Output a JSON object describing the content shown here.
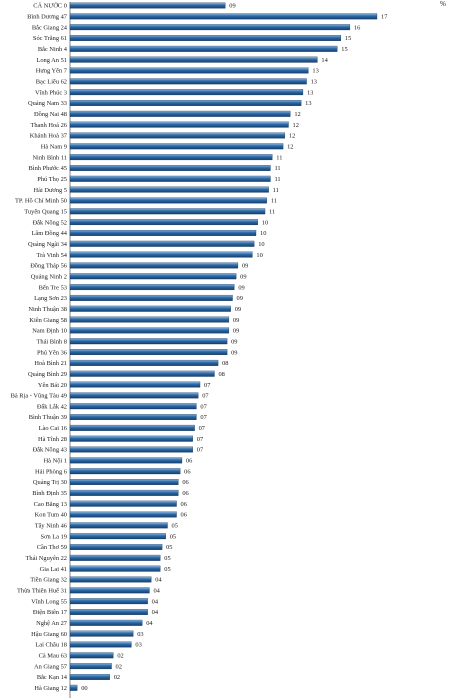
{
  "chart_data": {
    "type": "bar",
    "orientation": "horizontal",
    "unit_label": "%",
    "bar_color": "#1f5a96",
    "bar_highlight": "#8fb6dd",
    "xlim": [
      0,
      18
    ],
    "grid": false,
    "categories": [
      "CẢ NƯỚC 0",
      "Bình Dương 47",
      "Bắc Giang 24",
      "Sóc Trăng 61",
      "Bắc Ninh 4",
      "Long An 51",
      "Hưng Yên 7",
      "Bạc Liêu 62",
      "Vĩnh Phúc 3",
      "Quảng Nam 33",
      "Đồng Nai 48",
      "Thanh Hoá 26",
      "Khánh Hoà 37",
      "Hà Nam 9",
      "Ninh Bình 11",
      "Bình Phước 45",
      "Phú Thọ 25",
      "Hải Dương 5",
      "TP. Hồ Chí Minh 50",
      "Tuyên Quang 15",
      "Đắk Nông 52",
      "Lâm Đồng 44",
      "Quảng Ngãi 34",
      "Trà Vinh 54",
      "Đồng Tháp 56",
      "Quảng Ninh 2",
      "Bến Tre 53",
      "Lạng Sơn 23",
      "Ninh Thuận 38",
      "Kiên Giang 58",
      "Nam Định 10",
      "Thái Bình 8",
      "Phú Yên 36",
      "Hoà Bình 21",
      "Quảng Bình 29",
      "Yên Bái 20",
      "Bà Rịa - Vũng Tàu 49",
      "Đắk Lắk 42",
      "Bình Thuận 39",
      "Lào Cai 16",
      "Hà Tĩnh 28",
      "Đắk Nông 43",
      "Hà Nội 1",
      "Hải Phòng 6",
      "Quảng Trị 30",
      "Bình Định 35",
      "Cao Bằng 13",
      "Kon Tum 40",
      "Tây Ninh 46",
      "Sơn La 19",
      "Cần Thơ 59",
      "Thái Nguyên 22",
      "Gia Lai 41",
      "Tiền Giang 32",
      "Thừa Thiên Huế 31",
      "Vĩnh Long 55",
      "Điện Biên 17",
      "Nghệ An 27",
      "Hậu Giang 60",
      "Lai Châu 18",
      "Cà Mau 63",
      "An Giang 57",
      "Bắc Kạn 14",
      "Hà Giang 12"
    ],
    "value_labels": [
      "09",
      "17",
      "16",
      "15",
      "15",
      "14",
      "13",
      "13",
      "13",
      "13",
      "12",
      "12",
      "12",
      "12",
      "11",
      "11",
      "11",
      "11",
      "11",
      "11",
      "10",
      "10",
      "10",
      "10",
      "09",
      "09",
      "09",
      "09",
      "09",
      "09",
      "09",
      "09",
      "09",
      "08",
      "08",
      "07",
      "07",
      "07",
      "07",
      "07",
      "07",
      "07",
      "06",
      "06",
      "06",
      "06",
      "06",
      "06",
      "05",
      "05",
      "05",
      "05",
      "05",
      "04",
      "04",
      "04",
      "04",
      "04",
      "03",
      "03",
      "02",
      "02",
      "02",
      "00"
    ],
    "values": [
      8.6,
      17,
      15.5,
      15,
      14.8,
      13.7,
      13.2,
      13.1,
      12.9,
      12.8,
      12.2,
      12.1,
      11.9,
      11.8,
      11.2,
      11.1,
      11.1,
      11.0,
      10.9,
      10.8,
      10.4,
      10.3,
      10.2,
      10.1,
      9.3,
      9.2,
      9.1,
      9.0,
      8.9,
      8.8,
      8.8,
      8.7,
      8.7,
      8.2,
      8.0,
      7.2,
      7.1,
      7.0,
      7.0,
      6.9,
      6.8,
      6.8,
      6.2,
      6.1,
      6.0,
      6.0,
      5.9,
      5.9,
      5.4,
      5.3,
      5.1,
      5.0,
      5.0,
      4.5,
      4.4,
      4.3,
      4.3,
      4.0,
      3.5,
      3.4,
      2.4,
      2.3,
      2.2,
      0.4
    ]
  }
}
